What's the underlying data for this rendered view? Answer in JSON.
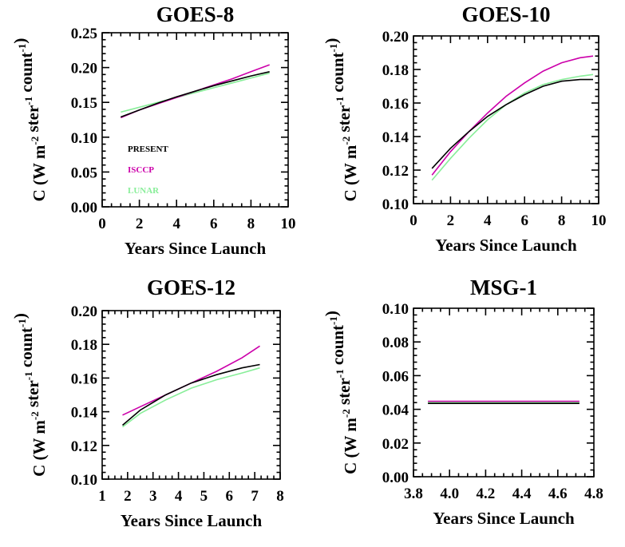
{
  "chart_data": [
    {
      "type": "line",
      "title": "GOES-8",
      "xlabel": "Years Since Launch",
      "ylabel": "C (W m-2 ster-1 count-1)",
      "xlim": [
        0,
        10
      ],
      "ylim": [
        0.0,
        0.25
      ],
      "xticks": [
        0,
        2,
        4,
        6,
        8,
        10
      ],
      "yticks": [
        0.0,
        0.05,
        0.1,
        0.15,
        0.2,
        0.25
      ],
      "xtick_decimals": 0,
      "ytick_decimals": 2,
      "legend": [
        "PRESENT",
        "ISCCP",
        "LUNAR"
      ],
      "series": [
        {
          "name": "PRESENT",
          "color": "#000000",
          "x": [
            1,
            2,
            3,
            4,
            5,
            6,
            7,
            8,
            9
          ],
          "y": [
            0.129,
            0.139,
            0.149,
            0.158,
            0.166,
            0.174,
            0.181,
            0.188,
            0.194
          ]
        },
        {
          "name": "ISCCP",
          "color": "#cc00aa",
          "x": [
            1,
            2,
            3,
            4,
            5,
            6,
            7,
            8,
            9
          ],
          "y": [
            0.128,
            0.139,
            0.148,
            0.157,
            0.166,
            0.175,
            0.184,
            0.194,
            0.204
          ]
        },
        {
          "name": "LUNAR",
          "color": "#88ee99",
          "x": [
            1,
            2,
            3,
            4,
            5,
            6,
            7,
            8,
            9
          ],
          "y": [
            0.136,
            0.143,
            0.15,
            0.157,
            0.164,
            0.171,
            0.178,
            0.185,
            0.192
          ]
        }
      ]
    },
    {
      "type": "line",
      "title": "GOES-10",
      "xlabel": "Years Since Launch",
      "ylabel": "C (W m-2 ster-1 count-1)",
      "xlim": [
        0,
        10
      ],
      "ylim": [
        0.1,
        0.2
      ],
      "xticks": [
        0,
        2,
        4,
        6,
        8,
        10
      ],
      "yticks": [
        0.1,
        0.12,
        0.14,
        0.16,
        0.18,
        0.2
      ],
      "xtick_decimals": 0,
      "ytick_decimals": 2,
      "series": [
        {
          "name": "PRESENT",
          "color": "#000000",
          "x": [
            1,
            2,
            3,
            4,
            5,
            6,
            7,
            8,
            9,
            9.7
          ],
          "y": [
            0.121,
            0.133,
            0.143,
            0.152,
            0.159,
            0.165,
            0.17,
            0.173,
            0.174,
            0.174
          ]
        },
        {
          "name": "ISCCP",
          "color": "#cc00aa",
          "x": [
            1,
            2,
            3,
            4,
            5,
            6,
            7,
            8,
            9,
            9.7
          ],
          "y": [
            0.117,
            0.131,
            0.143,
            0.154,
            0.164,
            0.172,
            0.179,
            0.184,
            0.187,
            0.188
          ]
        },
        {
          "name": "LUNAR",
          "color": "#88ee99",
          "x": [
            1,
            2,
            3,
            4,
            5,
            6,
            7,
            8,
            9,
            9.7
          ],
          "y": [
            0.114,
            0.127,
            0.139,
            0.15,
            0.159,
            0.166,
            0.171,
            0.174,
            0.176,
            0.177
          ]
        }
      ]
    },
    {
      "type": "line",
      "title": "GOES-12",
      "xlabel": "Years Since Launch",
      "ylabel": "C (W m-2 ster-1 count-1)",
      "xlim": [
        1,
        8
      ],
      "ylim": [
        0.1,
        0.2
      ],
      "xticks": [
        1,
        2,
        3,
        4,
        5,
        6,
        7,
        8
      ],
      "yticks": [
        0.1,
        0.12,
        0.14,
        0.16,
        0.18,
        0.2
      ],
      "xtick_decimals": 0,
      "ytick_decimals": 2,
      "series": [
        {
          "name": "PRESENT",
          "color": "#000000",
          "x": [
            1.8,
            2.5,
            3.5,
            4.5,
            5.5,
            6.5,
            7.2
          ],
          "y": [
            0.132,
            0.141,
            0.15,
            0.157,
            0.162,
            0.166,
            0.168
          ]
        },
        {
          "name": "ISCCP",
          "color": "#cc00aa",
          "x": [
            1.8,
            2.5,
            3.5,
            4.5,
            5.5,
            6.5,
            7.2
          ],
          "y": [
            0.138,
            0.143,
            0.15,
            0.157,
            0.164,
            0.172,
            0.179
          ]
        },
        {
          "name": "LUNAR",
          "color": "#88ee99",
          "x": [
            1.8,
            2.5,
            3.5,
            4.5,
            5.5,
            6.5,
            7.2
          ],
          "y": [
            0.131,
            0.139,
            0.147,
            0.154,
            0.159,
            0.163,
            0.166
          ]
        }
      ]
    },
    {
      "type": "line",
      "title": "MSG-1",
      "xlabel": "Years Since Launch",
      "ylabel": "C (W m-2 ster-1 count-1)",
      "xlim": [
        3.8,
        4.8
      ],
      "ylim": [
        0.0,
        0.1
      ],
      "xticks": [
        3.8,
        4.0,
        4.2,
        4.4,
        4.6,
        4.8
      ],
      "yticks": [
        0.0,
        0.02,
        0.04,
        0.06,
        0.08,
        0.1
      ],
      "xtick_decimals": 1,
      "ytick_decimals": 2,
      "series": [
        {
          "name": "PRESENT",
          "color": "#000000",
          "x": [
            3.88,
            4.72
          ],
          "y": [
            0.0435,
            0.0435
          ]
        },
        {
          "name": "ISCCP",
          "color": "#cc00aa",
          "x": [
            3.88,
            4.72
          ],
          "y": [
            0.0448,
            0.0448
          ]
        },
        {
          "name": "LUNAR",
          "color": "#88ee99",
          "x": [
            3.88,
            4.72
          ],
          "y": [
            0.0441,
            0.0441
          ]
        }
      ]
    }
  ]
}
